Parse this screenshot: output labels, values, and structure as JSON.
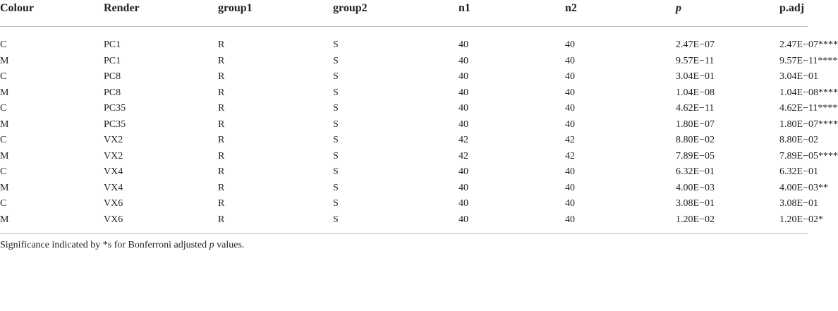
{
  "table": {
    "header": [
      "Colour",
      "Render",
      "group1",
      "group2",
      "n1",
      "n2",
      "p",
      "p.adj"
    ],
    "rows": [
      [
        "C",
        "PC1",
        "R",
        "S",
        "40",
        "40",
        "2.47E−07",
        "2.47E−07****"
      ],
      [
        "M",
        "PC1",
        "R",
        "S",
        "40",
        "40",
        "9.57E−11",
        "9.57E−11****"
      ],
      [
        "C",
        "PC8",
        "R",
        "S",
        "40",
        "40",
        "3.04E−01",
        "3.04E−01"
      ],
      [
        "M",
        "PC8",
        "R",
        "S",
        "40",
        "40",
        "1.04E−08",
        "1.04E−08****"
      ],
      [
        "C",
        "PC35",
        "R",
        "S",
        "40",
        "40",
        "4.62E−11",
        "4.62E−11****"
      ],
      [
        "M",
        "PC35",
        "R",
        "S",
        "40",
        "40",
        "1.80E−07",
        "1.80E−07****"
      ],
      [
        "C",
        "VX2",
        "R",
        "S",
        "42",
        "42",
        "8.80E−02",
        "8.80E−02"
      ],
      [
        "M",
        "VX2",
        "R",
        "S",
        "42",
        "42",
        "7.89E−05",
        "7.89E−05****"
      ],
      [
        "C",
        "VX4",
        "R",
        "S",
        "40",
        "40",
        "6.32E−01",
        "6.32E−01"
      ],
      [
        "M",
        "VX4",
        "R",
        "S",
        "40",
        "40",
        "4.00E−03",
        "4.00E−03**"
      ],
      [
        "C",
        "VX6",
        "R",
        "S",
        "40",
        "40",
        "3.08E−01",
        "3.08E−01"
      ],
      [
        "M",
        "VX6",
        "R",
        "S",
        "40",
        "40",
        "1.20E−02",
        "1.20E−02*"
      ]
    ]
  },
  "footnote": {
    "parts": [
      "Significance indicated by *s for Bonferroni adjusted ",
      "p",
      " values."
    ]
  }
}
